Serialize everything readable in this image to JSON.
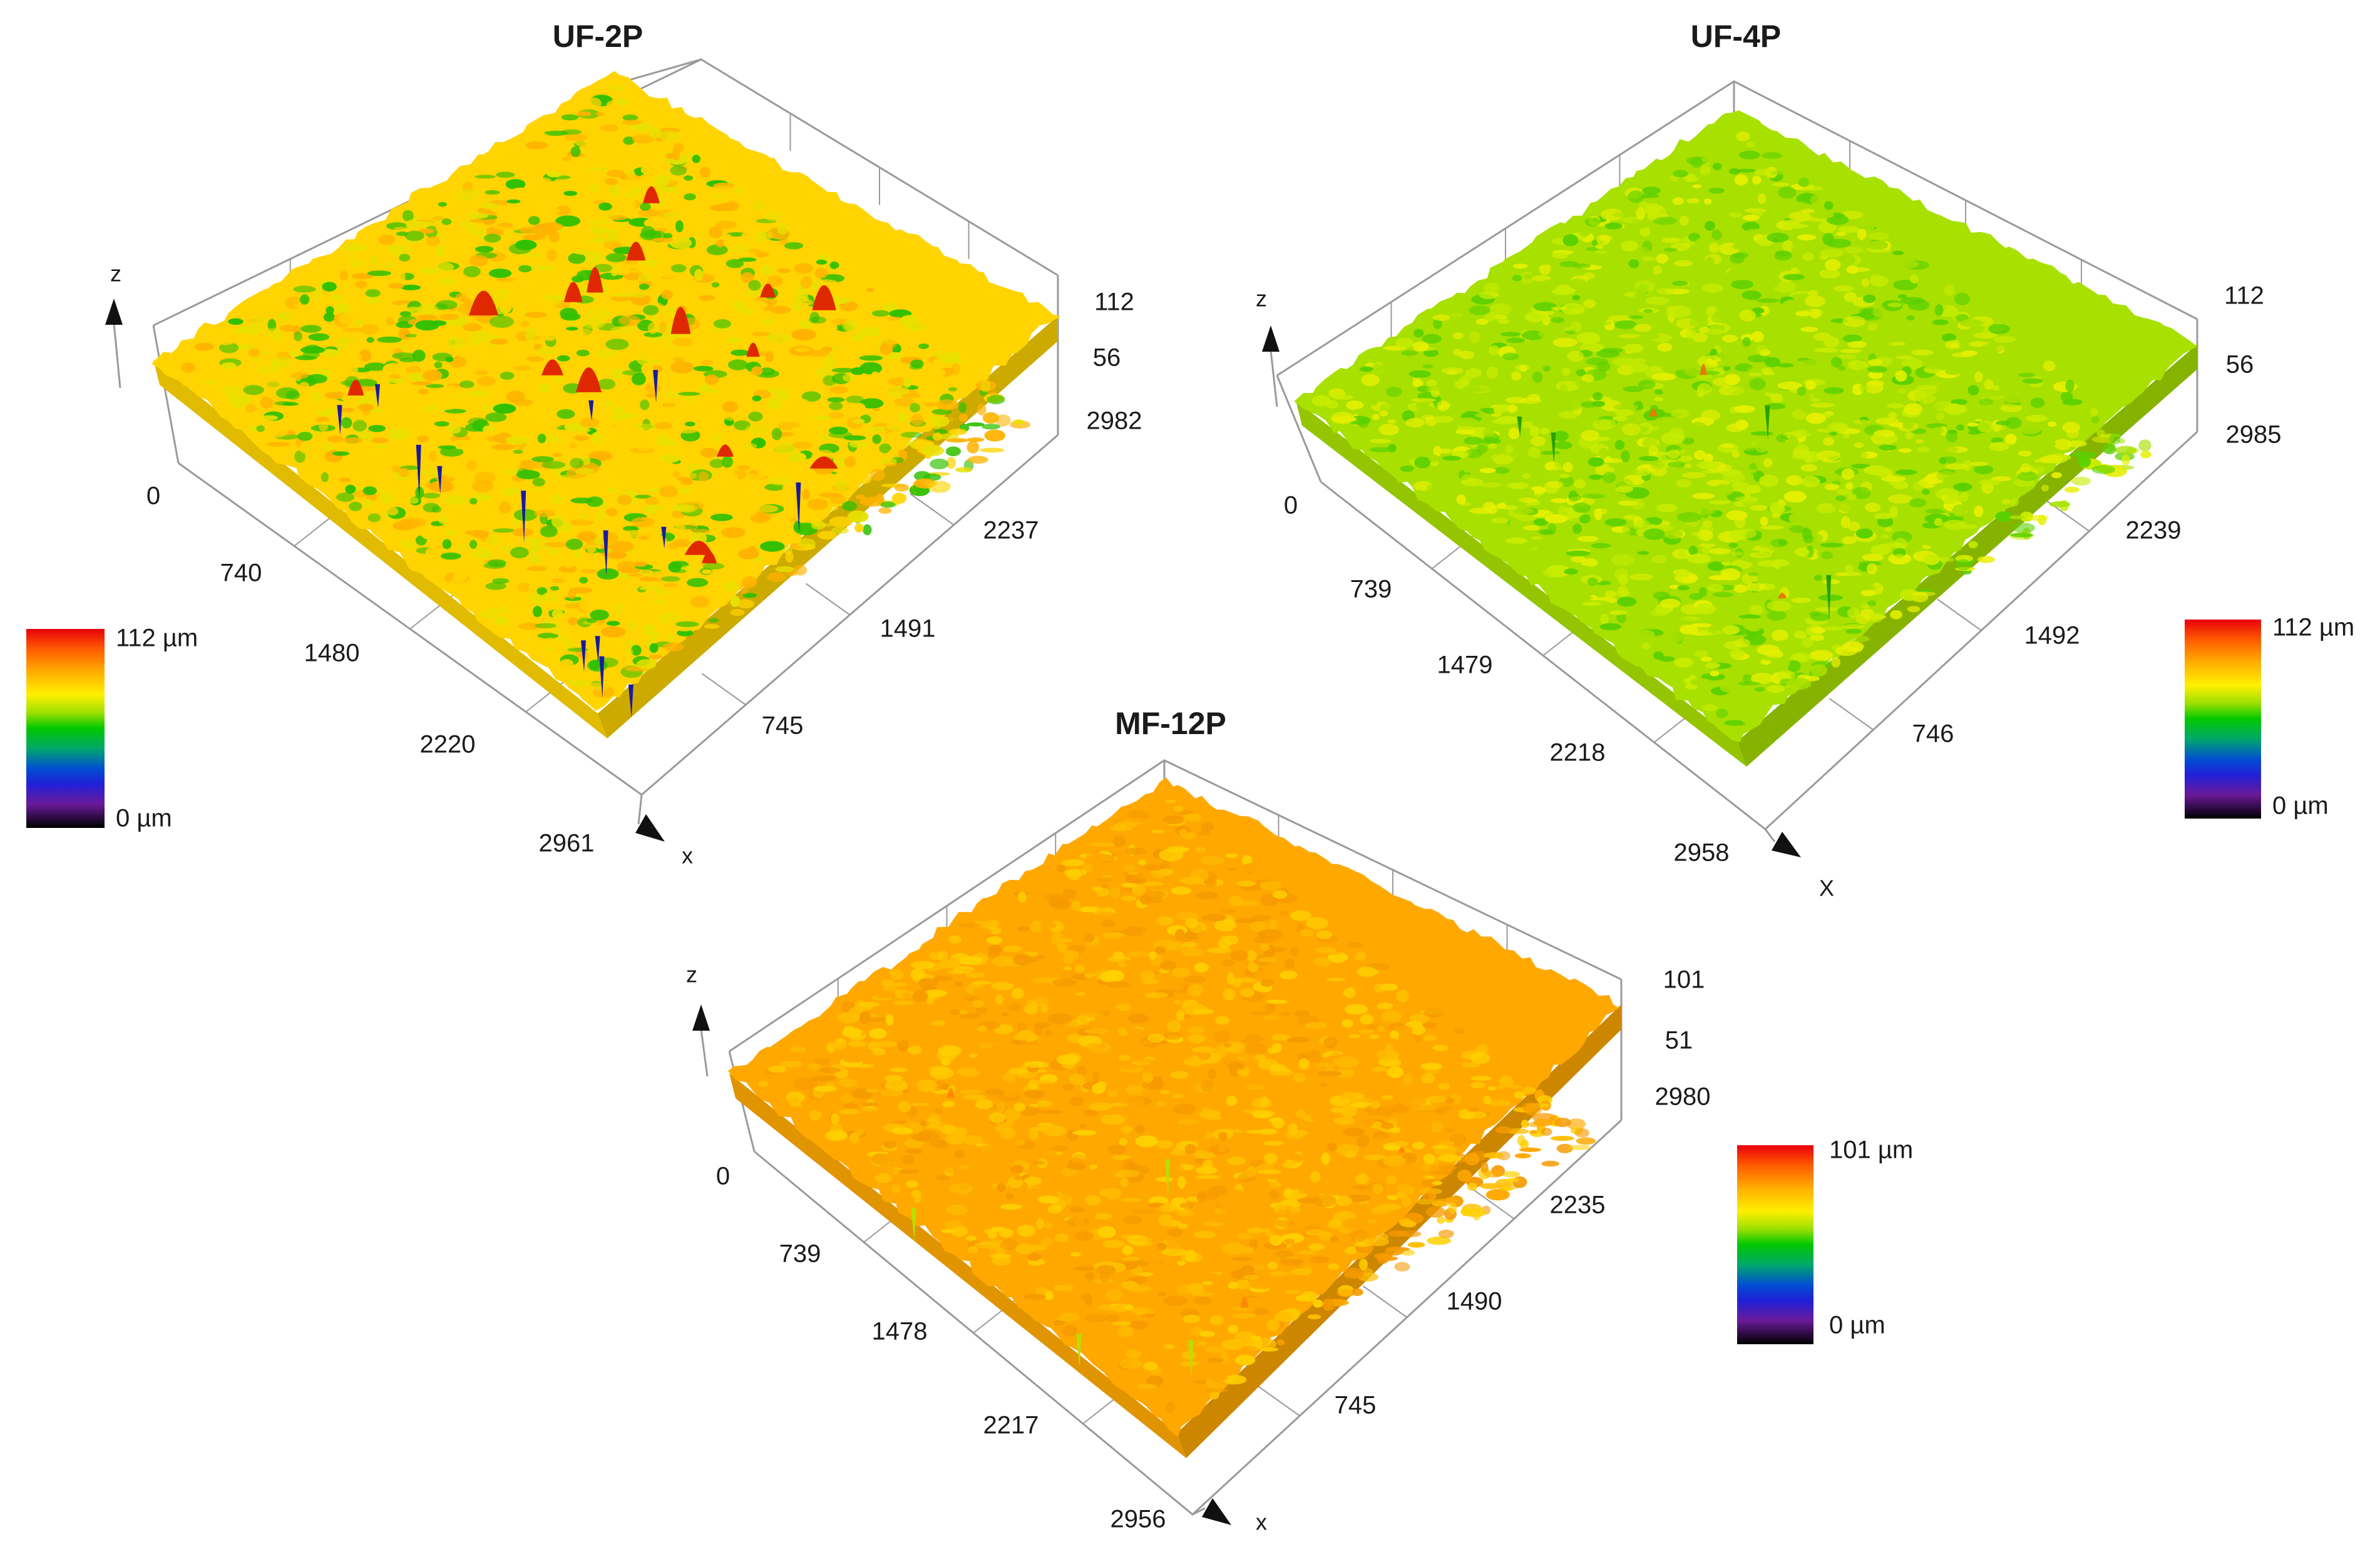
{
  "chart_data": [
    {
      "type": "heatmap",
      "title": "UF-2P",
      "z_axis_label": "z",
      "x_axis_label": "x",
      "left_axis_ticks": [
        "0",
        "740",
        "1480",
        "2220",
        "2961"
      ],
      "right_axis_ticks": [
        "745",
        "1491",
        "2237",
        "2982"
      ],
      "z_ticks": [
        "56",
        "112"
      ],
      "zlim": [
        0,
        112
      ],
      "colorbar": {
        "max_label": "112 µm",
        "min_label": "0 µm"
      },
      "surface": {
        "dominant_colors": [
          "#ffd400",
          "#ffb300",
          "#e8e000",
          "#30c000"
        ],
        "peak_color": "#e02800",
        "pit_color": "#1a1aa0",
        "roughness": "high, with isolated red peaks and blue pits"
      }
    },
    {
      "type": "heatmap",
      "title": "UF-4P",
      "z_axis_label": "z",
      "x_axis_label": "X",
      "left_axis_ticks": [
        "0",
        "739",
        "1479",
        "2218",
        "2958"
      ],
      "right_axis_ticks": [
        "746",
        "1492",
        "2239",
        "2985"
      ],
      "z_ticks": [
        "56",
        "112"
      ],
      "zlim": [
        0,
        112
      ],
      "colorbar": {
        "max_label": "112 µm",
        "min_label": "0 µm"
      },
      "surface": {
        "dominant_colors": [
          "#a8e000",
          "#c8ec00",
          "#5ad000",
          "#e6f000"
        ],
        "peak_color": "#e08000",
        "pit_color": "#2aa000",
        "roughness": "moderate, mostly green-yellow"
      }
    },
    {
      "type": "heatmap",
      "title": "MF-12P",
      "z_axis_label": "z",
      "x_axis_label": "x",
      "left_axis_ticks": [
        "0",
        "739",
        "1478",
        "2217",
        "2956"
      ],
      "right_axis_ticks": [
        "745",
        "1490",
        "2235",
        "2980"
      ],
      "z_ticks": [
        "51",
        "101"
      ],
      "zlim": [
        0,
        101
      ],
      "colorbar": {
        "max_label": "101 µm",
        "min_label": "0 µm"
      },
      "surface": {
        "dominant_colors": [
          "#ffa800",
          "#ffbe00",
          "#ffd000",
          "#f59a00"
        ],
        "peak_color": "#ff8a00",
        "pit_color": "#b8e000",
        "roughness": "fine, uniformly orange"
      }
    }
  ]
}
